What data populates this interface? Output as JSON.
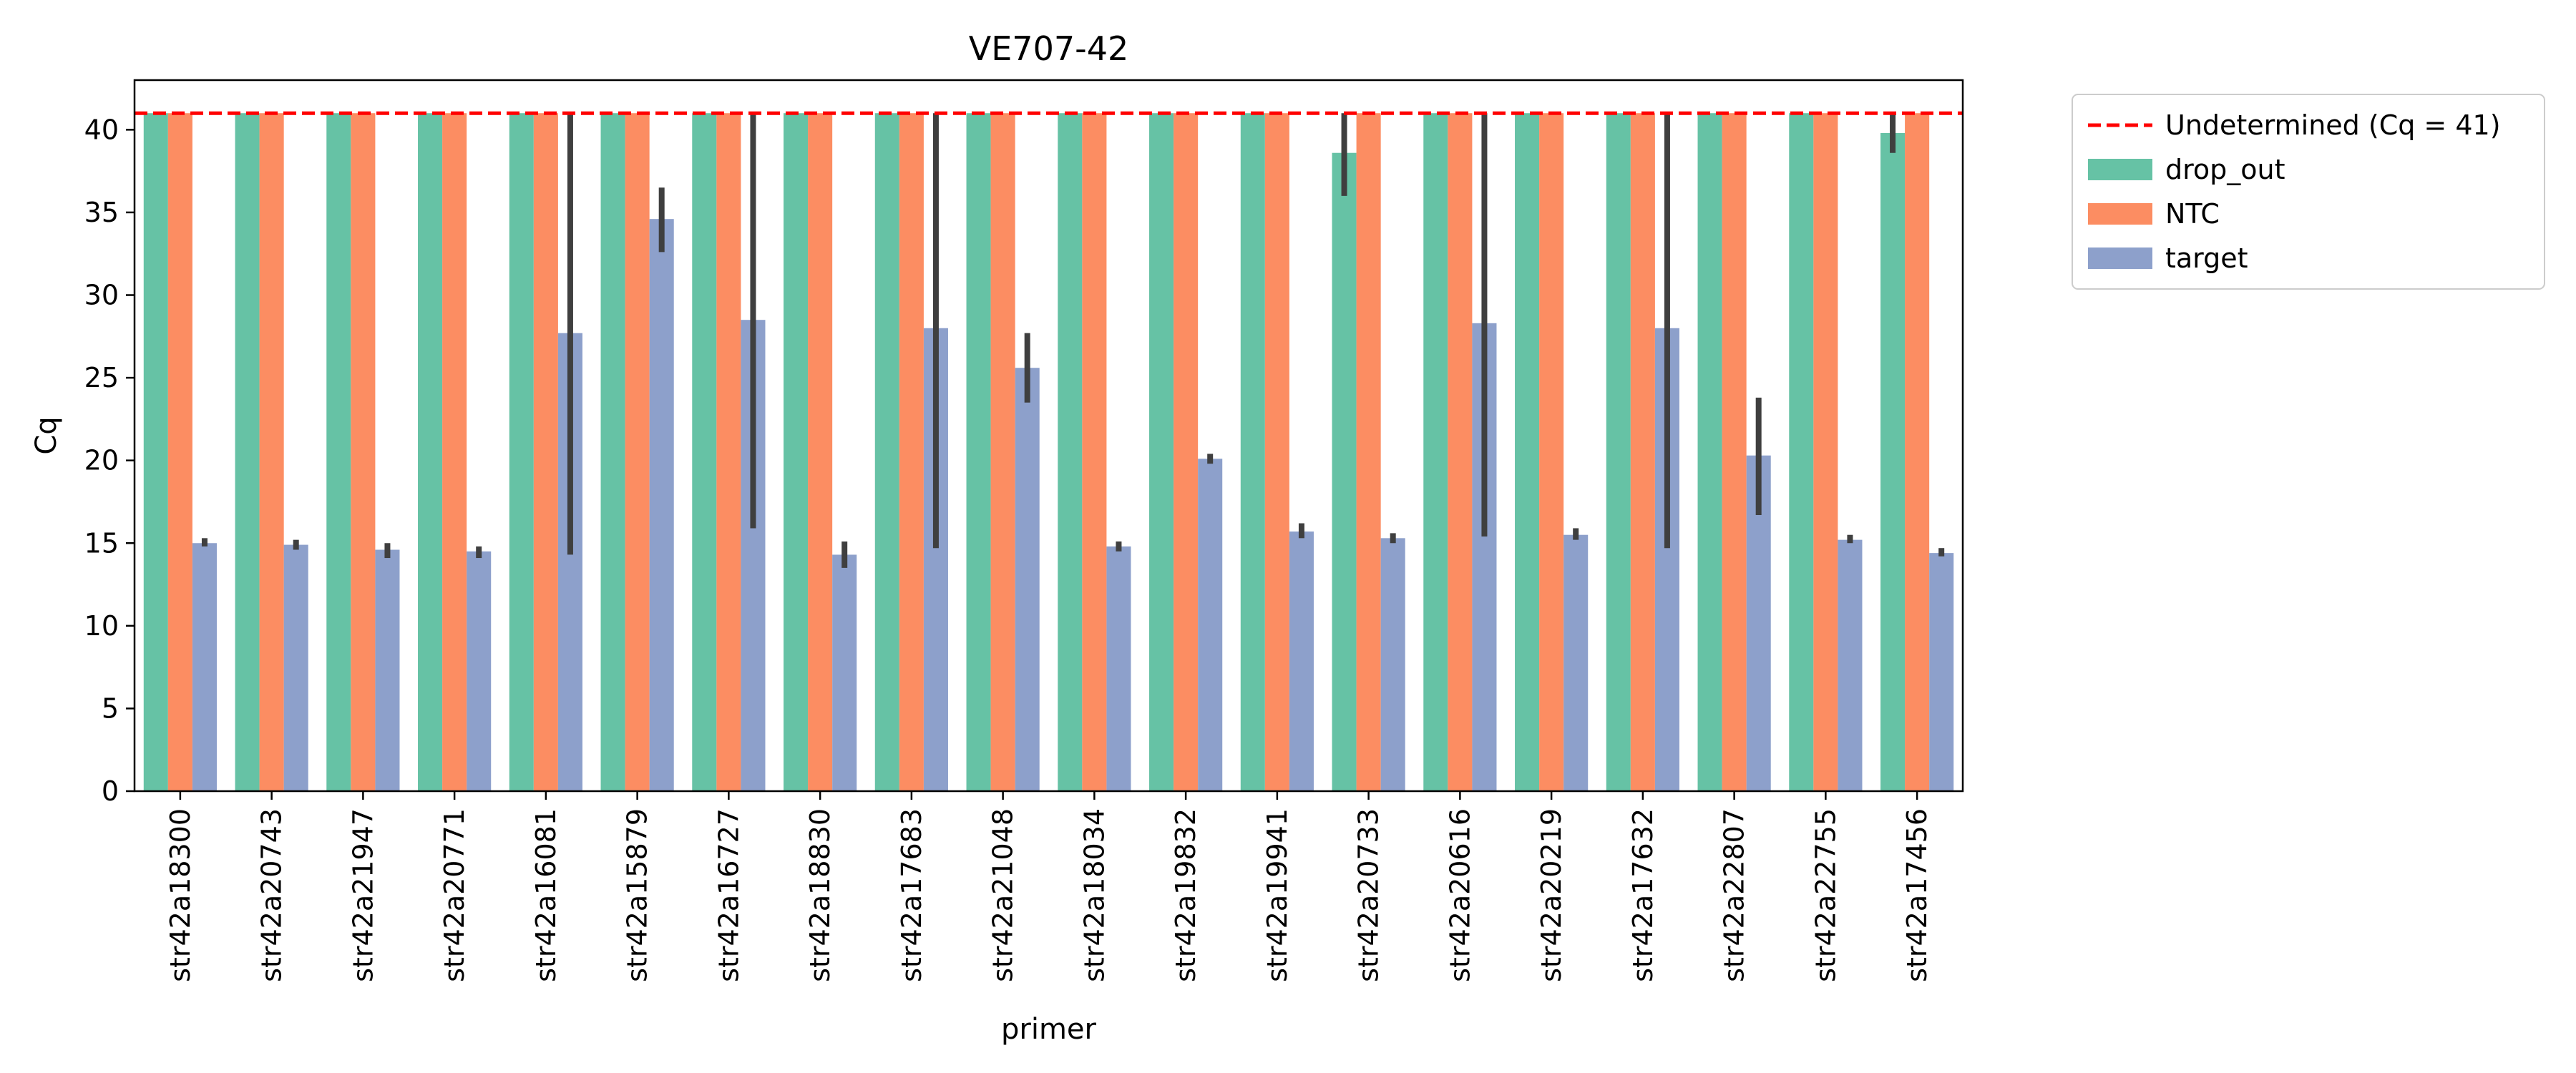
{
  "chart_data": {
    "type": "bar",
    "title": "VE707-42",
    "xlabel": "primer",
    "ylabel": "Cq",
    "ylim": [
      0,
      43
    ],
    "yticks": [
      0,
      5,
      10,
      15,
      20,
      25,
      30,
      35,
      40
    ],
    "grid": false,
    "legend_position": "outside-top-right",
    "categories": [
      "str42a18300",
      "str42a20743",
      "str42a21947",
      "str42a20771",
      "str42a16081",
      "str42a15879",
      "str42a16727",
      "str42a18830",
      "str42a17683",
      "str42a21048",
      "str42a18034",
      "str42a19832",
      "str42a19941",
      "str42a20733",
      "str42a20616",
      "str42a20219",
      "str42a17632",
      "str42a22807",
      "str42a22755",
      "str42a17456"
    ],
    "series": [
      {
        "name": "drop_out",
        "color": "#66c2a5",
        "values": [
          41,
          41,
          41,
          41,
          41,
          41,
          41,
          41,
          41,
          41,
          41,
          41,
          41,
          38.6,
          41,
          41,
          41,
          41,
          41,
          39.8
        ],
        "error": [
          null,
          null,
          null,
          null,
          null,
          null,
          null,
          null,
          null,
          null,
          null,
          null,
          null,
          [
            36.0,
            41.0
          ],
          null,
          null,
          null,
          null,
          null,
          [
            38.6,
            41.0
          ]
        ]
      },
      {
        "name": "NTC",
        "color": "#fc8d62",
        "values": [
          41,
          41,
          41,
          41,
          41,
          41,
          41,
          41,
          41,
          41,
          41,
          41,
          41,
          41,
          41,
          41,
          41,
          41,
          41,
          41
        ],
        "error": [
          null,
          null,
          null,
          null,
          null,
          null,
          null,
          null,
          null,
          null,
          null,
          null,
          null,
          null,
          null,
          null,
          null,
          null,
          null,
          null
        ]
      },
      {
        "name": "target",
        "color": "#8da0cb",
        "values": [
          15.0,
          14.9,
          14.6,
          14.5,
          27.7,
          34.6,
          28.5,
          14.3,
          28.0,
          25.6,
          14.8,
          20.1,
          15.7,
          15.3,
          28.3,
          15.5,
          28.0,
          20.3,
          15.2,
          14.4
        ],
        "error": [
          [
            14.8,
            15.3
          ],
          [
            14.6,
            15.2
          ],
          [
            14.1,
            15.0
          ],
          [
            14.1,
            14.8
          ],
          [
            14.3,
            41.0
          ],
          [
            32.6,
            36.5
          ],
          [
            15.9,
            41.0
          ],
          [
            13.5,
            15.1
          ],
          [
            14.7,
            41.0
          ],
          [
            23.5,
            27.7
          ],
          [
            14.5,
            15.1
          ],
          [
            19.8,
            20.4
          ],
          [
            15.3,
            16.2
          ],
          [
            15.0,
            15.6
          ],
          [
            15.4,
            41.0
          ],
          [
            15.2,
            15.9
          ],
          [
            14.7,
            41.0
          ],
          [
            16.7,
            23.8
          ],
          [
            15.0,
            15.5
          ],
          [
            14.2,
            14.7
          ]
        ]
      }
    ],
    "reference_line": {
      "value": 41,
      "label": "Undetermined (Cq = 41)",
      "color": "#ff0000",
      "style": "dashed"
    },
    "error_bar_color": "#3f3f3f"
  }
}
